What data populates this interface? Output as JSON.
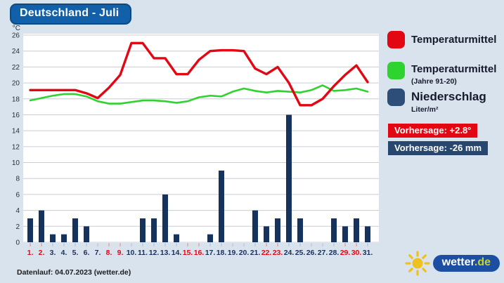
{
  "title": "Deutschland - Juli",
  "legend": {
    "items": [
      {
        "label": "Temperaturmittel",
        "sublabel": "",
        "color": "#e30613"
      },
      {
        "label": "Temperaturmittel",
        "sublabel": "(Jahre 91-20)",
        "color": "#2fd32f"
      },
      {
        "label": "Niederschlag",
        "sublabel": "Liter/m²",
        "color": "#2d4e79"
      }
    ]
  },
  "badges": [
    {
      "text": "Vorhersage: +2.8°",
      "color": "#e30613"
    },
    {
      "text": "Vorhersage: -26 mm",
      "color": "#27476f"
    }
  ],
  "footer": {
    "datenlauf": "Datenlauf: 04.07.2023 (wetter.de)"
  },
  "logo": {
    "name": "wetter",
    "tld": ".de"
  },
  "chart_data": {
    "type": "composite",
    "title": "Deutschland - Juli",
    "y_unit": "°C",
    "ylim": [
      0,
      26
    ],
    "y_tick_step": 2,
    "grid": true,
    "legend_position": "right",
    "categories": [
      "1.",
      "2.",
      "3.",
      "4.",
      "5.",
      "6.",
      "7.",
      "8.",
      "9.",
      "10.",
      "11.",
      "12.",
      "13.",
      "14.",
      "15.",
      "16.",
      "17.",
      "18.",
      "19.",
      "20.",
      "21.",
      "22.",
      "23.",
      "24.",
      "25.",
      "26.",
      "27.",
      "28.",
      "29.",
      "30.",
      "31."
    ],
    "weekend_days": [
      1,
      2,
      8,
      9,
      15,
      16,
      22,
      23,
      29,
      30
    ],
    "weekend_label_color": "#e30613",
    "weekday_label_color": "#1b2f5a",
    "series": [
      {
        "name": "Temperaturmittel",
        "type": "line",
        "color": "#e30613",
        "stroke_width": 3.4,
        "values": [
          19.1,
          19.1,
          19.1,
          19.1,
          19.1,
          18.7,
          18.1,
          19.4,
          21.0,
          25.0,
          25.0,
          23.1,
          23.1,
          21.1,
          21.1,
          22.9,
          24.0,
          24.1,
          24.1,
          24.0,
          21.8,
          21.1,
          22.0,
          20.0,
          17.2,
          17.2,
          18.0,
          19.6,
          21.0,
          22.2,
          20.1
        ]
      },
      {
        "name": "Temperaturmittel (Jahre 91-20)",
        "type": "line",
        "color": "#2fd32f",
        "stroke_width": 2.6,
        "values": [
          17.8,
          18.1,
          18.4,
          18.6,
          18.6,
          18.3,
          17.7,
          17.4,
          17.4,
          17.6,
          17.8,
          17.8,
          17.7,
          17.5,
          17.7,
          18.2,
          18.4,
          18.3,
          18.9,
          19.3,
          19.0,
          18.8,
          19.0,
          18.9,
          18.8,
          19.1,
          19.7,
          19.0,
          19.1,
          19.3,
          18.9
        ]
      },
      {
        "name": "Niederschlag",
        "type": "bar",
        "unit": "Liter/m²",
        "color": "#16335d",
        "values": [
          3,
          4,
          1,
          1,
          3,
          2,
          0,
          0,
          0,
          0,
          3,
          3,
          6,
          1,
          0,
          0,
          1,
          9,
          0,
          0,
          4,
          2,
          3,
          16,
          3,
          0,
          0,
          3,
          2,
          3,
          2
        ]
      }
    ]
  }
}
